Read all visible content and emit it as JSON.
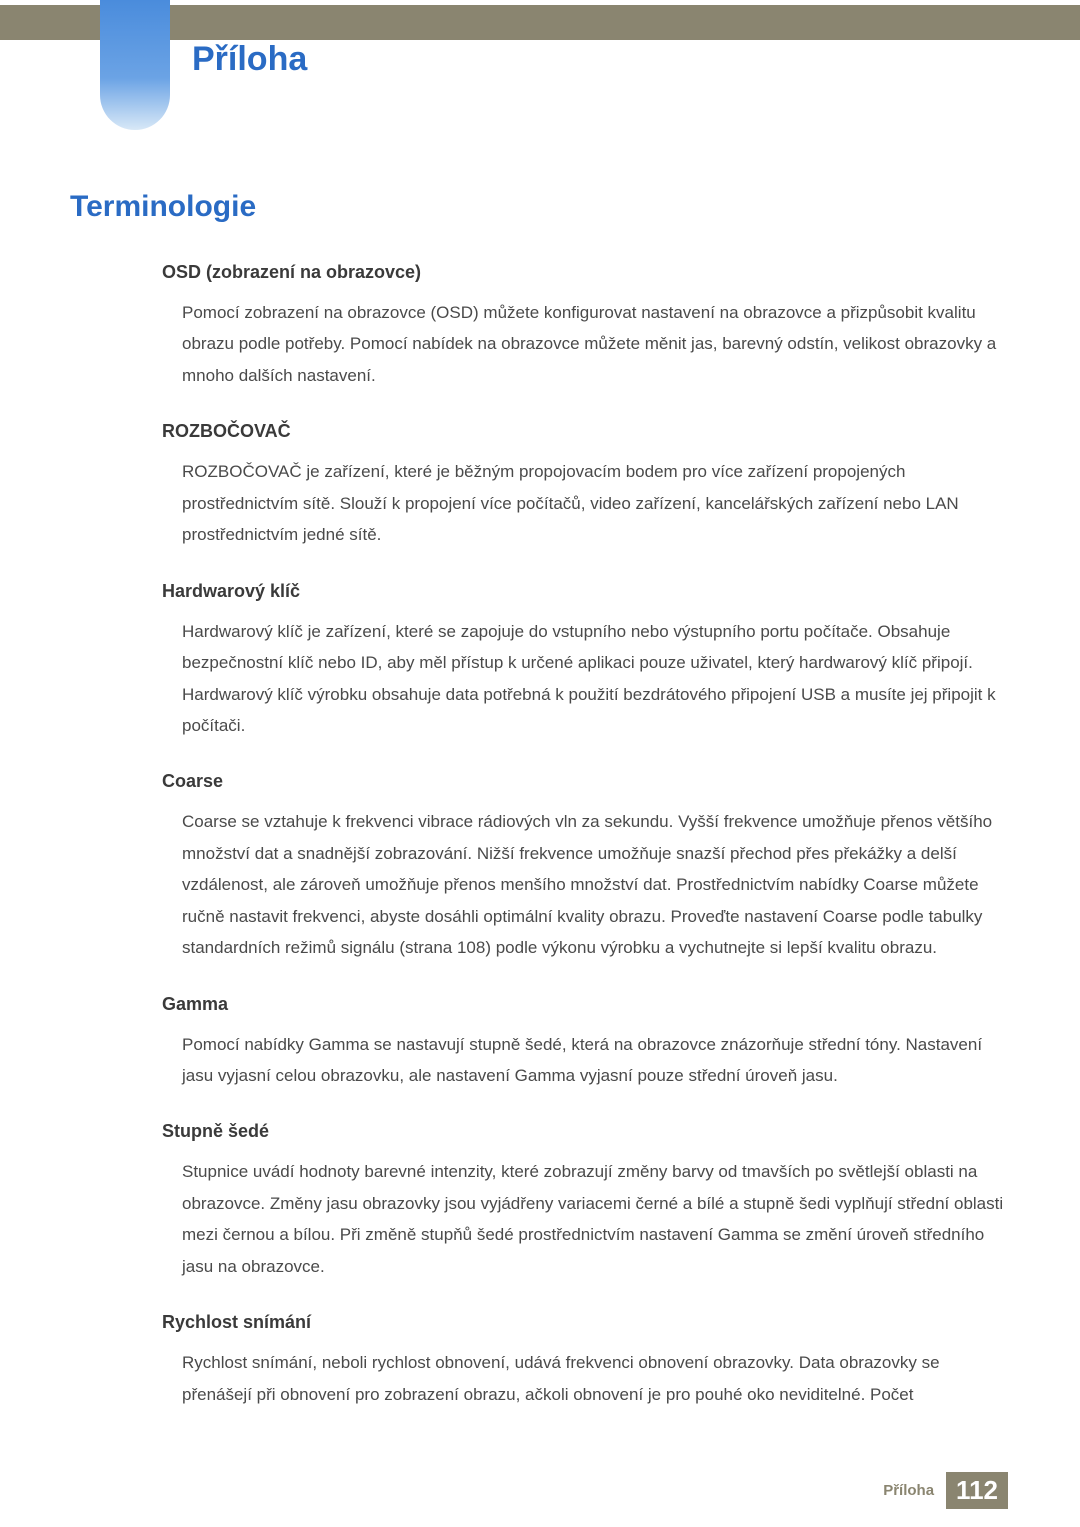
{
  "header": {
    "top_bar_color": "#8a8570",
    "tab_gradient_top": "#4a8cdc",
    "tab_gradient_bottom": "#d8e8f7",
    "chapter_title": "Příloha",
    "chapter_title_color": "#2a6bc4"
  },
  "section": {
    "title": "Terminologie"
  },
  "terms": [
    {
      "heading": "OSD (zobrazení na obrazovce)",
      "body": "Pomocí zobrazení na obrazovce (OSD) můžete konfigurovat nastavení na obrazovce a přizpůsobit kvalitu obrazu podle potřeby. Pomocí nabídek na obrazovce můžete měnit jas, barevný odstín, velikost obrazovky a mnoho dalších nastavení."
    },
    {
      "heading": "ROZBOČOVAČ",
      "body": "ROZBOČOVAČ je zařízení, které je běžným propojovacím bodem pro více zařízení propojených prostřednictvím sítě. Slouží k propojení více počítačů, video zařízení, kancelářských zařízení nebo LAN prostřednictvím jedné sítě."
    },
    {
      "heading": "Hardwarový klíč",
      "body": "Hardwarový klíč je zařízení, které se zapojuje do vstupního nebo výstupního portu počítače. Obsahuje bezpečnostní klíč nebo ID, aby měl přístup k určené aplikaci pouze uživatel, který hardwarový klíč připojí. Hardwarový klíč výrobku obsahuje data potřebná k použití bezdrátového připojení USB a musíte jej připojit k počítači."
    },
    {
      "heading": "Coarse",
      "body": "Coarse se vztahuje k frekvenci vibrace rádiových vln za sekundu. Vyšší frekvence umožňuje přenos většího množství dat a snadnější zobrazování. Nižší frekvence umožňuje snazší přechod přes překážky a delší vzdálenost, ale zároveň umožňuje přenos menšího množství dat. Prostřednictvím nabídky Coarse můžete ručně nastavit frekvenci, abyste dosáhli optimální kvality obrazu. Proveďte nastavení Coarse podle tabulky standardních režimů signálu (strana 108) podle výkonu výrobku a vychutnejte si lepší kvalitu obrazu."
    },
    {
      "heading": "Gamma",
      "body": "Pomocí nabídky Gamma se nastavují stupně šedé, která na obrazovce znázorňuje střední tóny. Nastavení jasu vyjasní celou obrazovku, ale nastavení Gamma vyjasní pouze střední úroveň jasu."
    },
    {
      "heading": "Stupně šedé",
      "body": "Stupnice uvádí hodnoty barevné intenzity, které zobrazují změny barvy od tmavších po světlejší oblasti na obrazovce. Změny jasu obrazovky jsou vyjádřeny variacemi černé a bílé a stupně šedi vyplňují střední oblasti mezi černou a bílou. Při změně stupňů šedé prostřednictvím nastavení Gamma se změní úroveň středního jasu na obrazovce."
    },
    {
      "heading": "Rychlost snímání",
      "body": "Rychlost snímání, neboli rychlost obnovení, udává frekvenci obnovení obrazovky. Data obrazovky se přenášejí při obnovení pro zobrazení obrazu, ačkoli obnovení je pro pouhé oko neviditelné. Počet"
    }
  ],
  "footer": {
    "label": "Příloha",
    "page_number": "112",
    "badge_bg": "#8a8570"
  }
}
